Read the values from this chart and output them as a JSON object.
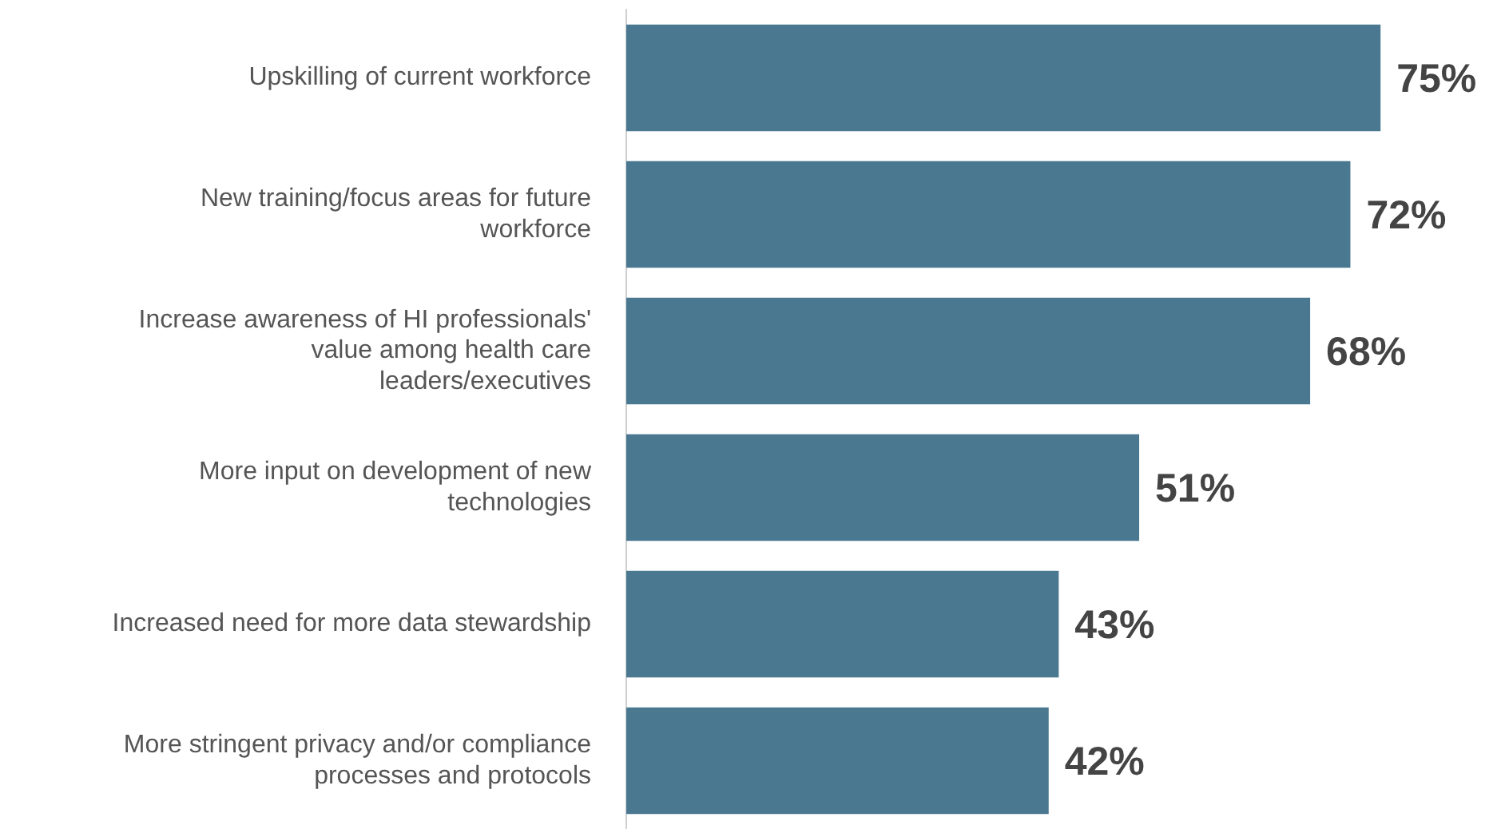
{
  "chart_data": {
    "type": "bar",
    "orientation": "horizontal",
    "categories": [
      "Upskilling of current workforce",
      "New training/focus areas for future workforce",
      "Increase awareness of HI professionals' value among health care leaders/executives",
      "More input on development of new technologies",
      "Increased need for more data stewardship",
      "More stringent privacy and/or compliance processes and protocols"
    ],
    "values": [
      75,
      72,
      68,
      51,
      43,
      42
    ],
    "value_labels": [
      "75%",
      "72%",
      "68%",
      "51%",
      "43%",
      "42%"
    ],
    "color": "#4a7891",
    "tick_labels": "y"
  }
}
